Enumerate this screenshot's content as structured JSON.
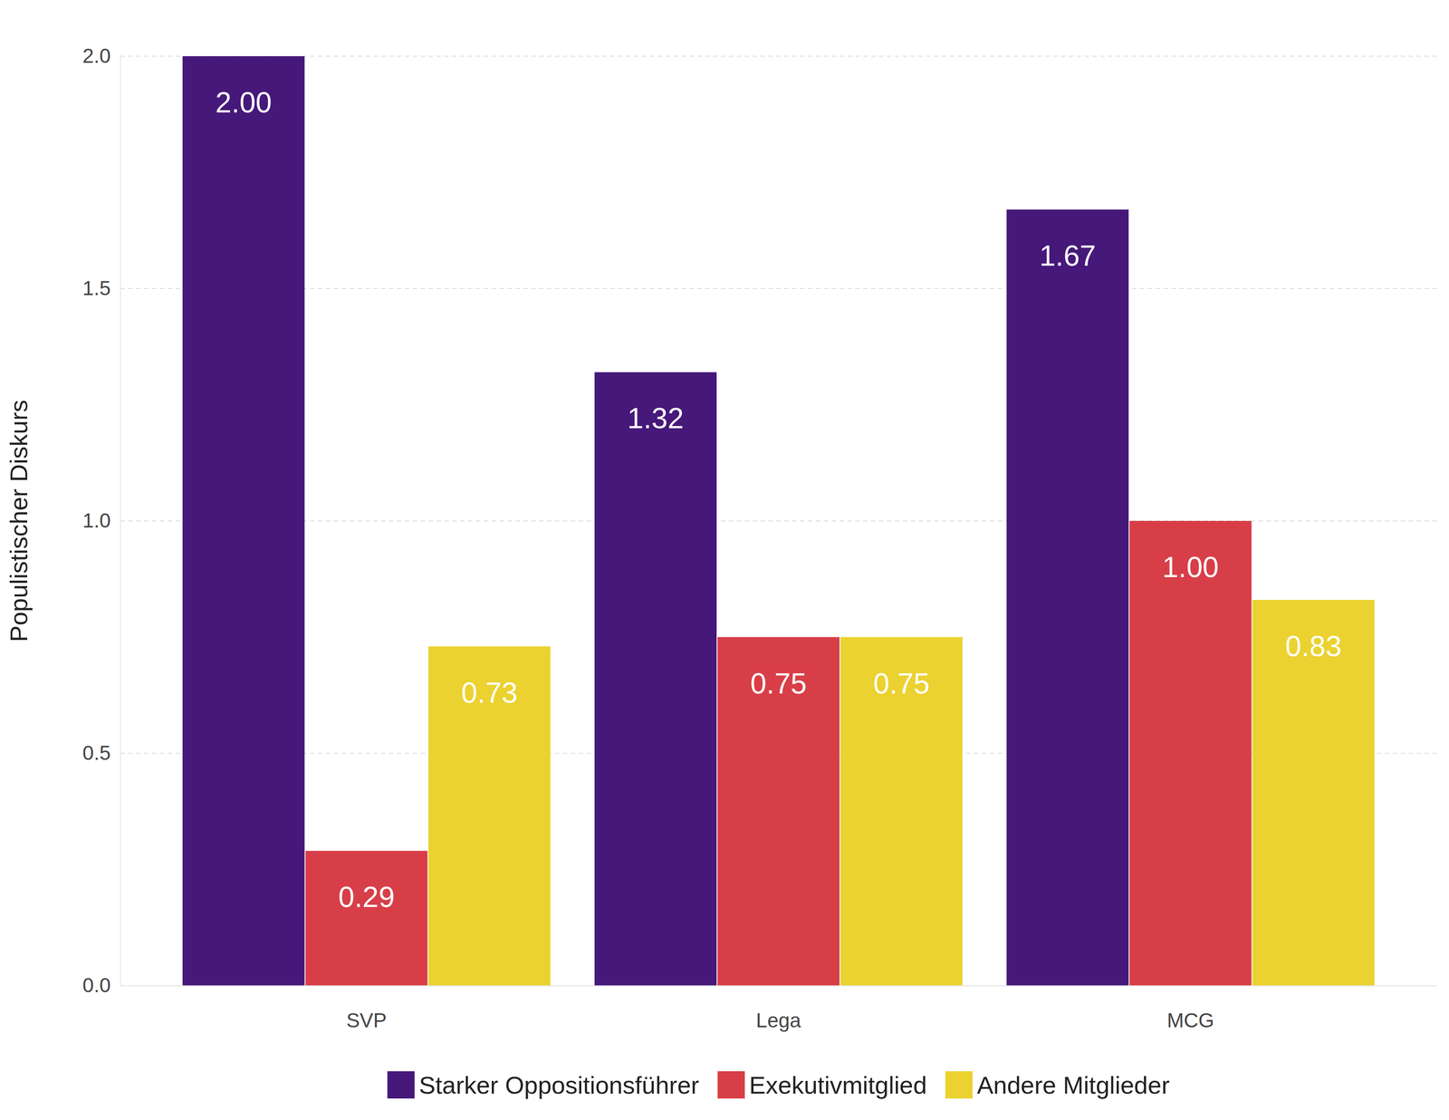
{
  "chart_data": {
    "type": "bar",
    "y_label": "Populistischer Diskurs",
    "categories": [
      "SVP",
      "Lega",
      "MCG"
    ],
    "series": [
      {
        "name": "Starker Oppositionsführer",
        "color": "#46187a",
        "values": [
          2.0,
          1.32,
          1.67
        ],
        "value_labels": [
          "2.00",
          "1.32",
          "1.67"
        ]
      },
      {
        "name": "Exekutivmitglied",
        "color": "#d83e48",
        "values": [
          0.29,
          0.75,
          1.0
        ],
        "value_labels": [
          "0.29",
          "0.75",
          "1.00"
        ]
      },
      {
        "name": "Andere Mitglieder",
        "color": "#ebd230",
        "values": [
          0.73,
          0.75,
          0.83
        ],
        "value_labels": [
          "0.73",
          "0.75",
          "0.83"
        ]
      }
    ],
    "ylim": [
      0,
      2
    ],
    "yticks": [
      {
        "value": 0,
        "label": "0.0"
      },
      {
        "value": 0.5,
        "label": "0.5"
      },
      {
        "value": 1,
        "label": "1.0"
      },
      {
        "value": 1.5,
        "label": "1.5"
      },
      {
        "value": 2,
        "label": "2.0"
      }
    ],
    "grid": true,
    "data_labels": true,
    "legend": "bottom"
  }
}
